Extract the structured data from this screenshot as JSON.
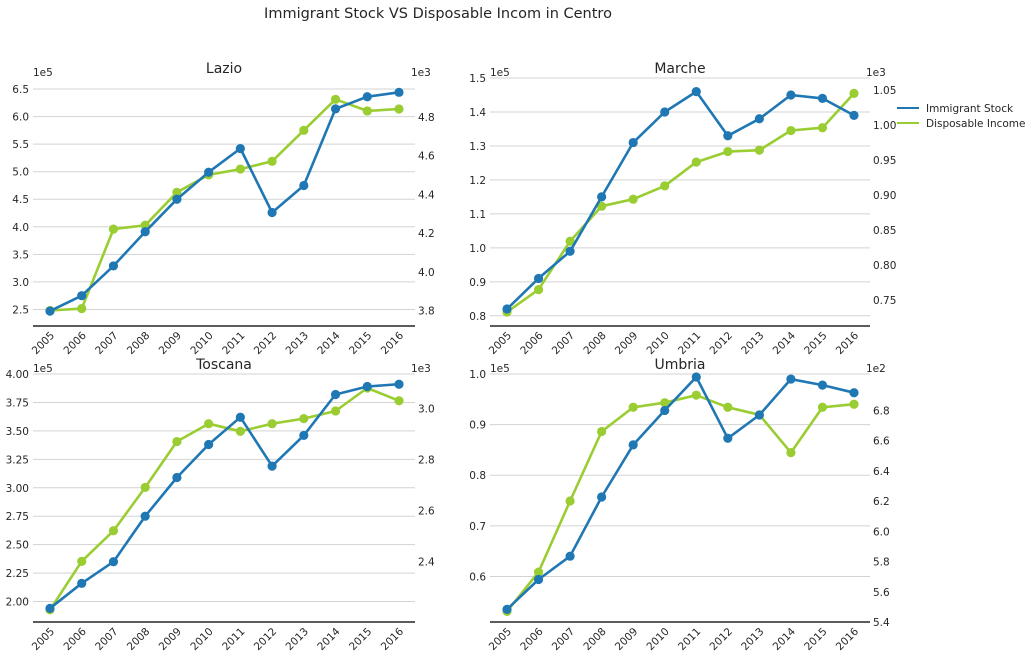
{
  "figure": {
    "title": "Immigrant Stock VS Disposable Incom in Centro"
  },
  "legend": {
    "placement": "right",
    "entries": [
      {
        "label": "Immigrant Stock",
        "color": "#1f77b4"
      },
      {
        "label": "Disposable Income",
        "color": "#9acd32"
      }
    ]
  },
  "chart_data": [
    {
      "type": "line",
      "title": "Lazio",
      "x": [
        "2005",
        "2006",
        "2007",
        "2008",
        "2009",
        "2010",
        "2011",
        "2012",
        "2013",
        "2014",
        "2015",
        "2016"
      ],
      "grid": true,
      "left_axis": {
        "exponent_label": "1e5",
        "ylim": [
          2.2,
          6.7
        ],
        "ticks": [
          "2.5",
          "3.0",
          "3.5",
          "4.0",
          "4.5",
          "5.0",
          "5.5",
          "6.0",
          "6.5"
        ]
      },
      "right_axis": {
        "exponent_label": "1e3",
        "ylim": [
          3.72,
          5.0
        ],
        "ticks": [
          "3.8",
          "4.0",
          "4.2",
          "4.4",
          "4.6",
          "4.8"
        ]
      },
      "series": [
        {
          "name": "Immigrant Stock",
          "axis": "left",
          "color": "#1f77b4",
          "values": [
            2.47,
            2.75,
            3.29,
            3.91,
            4.5,
            4.99,
            5.42,
            4.26,
            4.75,
            6.14,
            6.36,
            6.44
          ]
        },
        {
          "name": "Disposable Income",
          "axis": "right",
          "color": "#9acd32",
          "values": [
            3.8,
            3.81,
            4.22,
            4.24,
            4.41,
            4.5,
            4.53,
            4.57,
            4.73,
            4.89,
            4.83,
            4.84
          ]
        }
      ]
    },
    {
      "type": "line",
      "title": "Marche",
      "x": [
        "2005",
        "2006",
        "2007",
        "2008",
        "2009",
        "2010",
        "2011",
        "2012",
        "2013",
        "2014",
        "2015",
        "2016"
      ],
      "grid": true,
      "left_axis": {
        "exponent_label": "1e5",
        "ylim": [
          0.77,
          1.5
        ],
        "ticks": [
          "0.8",
          "0.9",
          "1.0",
          "1.1",
          "1.2",
          "1.3",
          "1.4",
          "1.5"
        ]
      },
      "right_axis": {
        "exponent_label": "1e3",
        "ylim": [
          0.713,
          1.067
        ],
        "ticks": [
          "0.75",
          "0.80",
          "0.85",
          "0.90",
          "0.95",
          "1.00",
          "1.05"
        ]
      },
      "series": [
        {
          "name": "Immigrant Stock",
          "axis": "left",
          "color": "#1f77b4",
          "values": [
            0.82,
            0.91,
            0.99,
            1.15,
            1.31,
            1.4,
            1.46,
            1.33,
            1.38,
            1.45,
            1.44,
            1.39
          ]
        },
        {
          "name": "Disposable Income",
          "axis": "right",
          "color": "#9acd32",
          "values": [
            0.733,
            0.765,
            0.834,
            0.884,
            0.894,
            0.913,
            0.947,
            0.962,
            0.964,
            0.992,
            0.996,
            1.045
          ]
        }
      ]
    },
    {
      "type": "line",
      "title": "Toscana",
      "x": [
        "2005",
        "2006",
        "2007",
        "2008",
        "2009",
        "2010",
        "2011",
        "2012",
        "2013",
        "2014",
        "2015",
        "2016"
      ],
      "grid": true,
      "left_axis": {
        "exponent_label": "1e5",
        "ylim": [
          1.82,
          4.0
        ],
        "ticks": [
          "2.00",
          "2.25",
          "2.50",
          "2.75",
          "3.00",
          "3.25",
          "3.50",
          "3.75",
          "4.00"
        ]
      },
      "right_axis": {
        "exponent_label": "1e3",
        "ylim": [
          2.162,
          3.135
        ],
        "ticks": [
          "2.4",
          "2.6",
          "2.8",
          "3.0"
        ]
      },
      "series": [
        {
          "name": "Immigrant Stock",
          "axis": "left",
          "color": "#1f77b4",
          "values": [
            1.94,
            2.16,
            2.35,
            2.75,
            3.09,
            3.38,
            3.62,
            3.19,
            3.46,
            3.82,
            3.89,
            3.91
          ]
        },
        {
          "name": "Disposable Income",
          "axis": "right",
          "color": "#9acd32",
          "values": [
            2.21,
            2.4,
            2.52,
            2.69,
            2.87,
            2.94,
            2.91,
            2.94,
            2.96,
            2.99,
            3.08,
            3.03
          ]
        }
      ]
    },
    {
      "type": "line",
      "title": "Umbria",
      "x": [
        "2005",
        "2006",
        "2007",
        "2008",
        "2009",
        "2010",
        "2011",
        "2012",
        "2013",
        "2014",
        "2015",
        "2016"
      ],
      "grid": true,
      "left_axis": {
        "exponent_label": "1e5",
        "ylim": [
          0.51,
          1.0
        ],
        "ticks": [
          "0.6",
          "0.7",
          "0.8",
          "0.9",
          "1.0"
        ]
      },
      "right_axis": {
        "exponent_label": "1e2",
        "ylim": [
          5.4,
          7.04
        ],
        "ticks": [
          "5.4",
          "5.6",
          "5.8",
          "6.0",
          "6.2",
          "6.4",
          "6.6",
          "6.8"
        ]
      },
      "series": [
        {
          "name": "Immigrant Stock",
          "axis": "left",
          "color": "#1f77b4",
          "values": [
            0.535,
            0.594,
            0.64,
            0.757,
            0.86,
            0.928,
            0.994,
            0.873,
            0.919,
            0.99,
            0.978,
            0.963
          ]
        },
        {
          "name": "Disposable Income",
          "axis": "right",
          "color": "#9acd32",
          "values": [
            5.47,
            5.73,
            6.2,
            6.66,
            6.82,
            6.85,
            6.9,
            6.82,
            6.77,
            6.52,
            6.82,
            6.84
          ]
        }
      ]
    }
  ]
}
